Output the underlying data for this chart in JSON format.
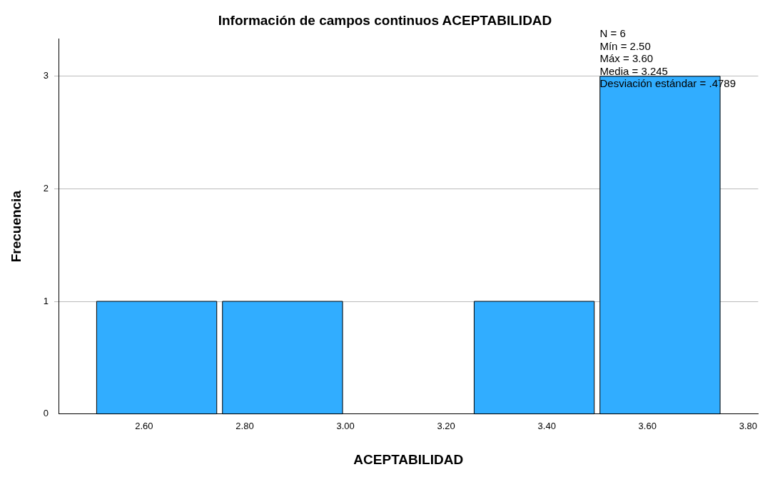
{
  "chart_data": {
    "type": "histogram",
    "title": "Información de campos continuos ACEPTABILIDAD",
    "xlabel": "ACEPTABILIDAD",
    "ylabel": "Frecuencia",
    "bins": [
      2.5,
      2.75,
      3.0,
      3.25,
      3.5,
      3.75
    ],
    "values": [
      1,
      1,
      0,
      1,
      3
    ],
    "color": "#31adff",
    "xlim": [
      2.43,
      3.82
    ],
    "xticks": [
      {
        "value": 2.6,
        "label": "2.60"
      },
      {
        "value": 2.8,
        "label": "2.80"
      },
      {
        "value": 3.0,
        "label": "3.00"
      },
      {
        "value": 3.2,
        "label": "3.20"
      },
      {
        "value": 3.4,
        "label": "3.40"
      },
      {
        "value": 3.6,
        "label": "3.60"
      },
      {
        "value": 3.8,
        "label": "3.80"
      }
    ],
    "ylim": [
      0,
      3.33
    ],
    "yticks": [
      0,
      1,
      2,
      3
    ],
    "grid": "y",
    "annotations": [
      "N = 6",
      "Mín = 2.50",
      "Máx = 3.60",
      "Media = 3.245",
      "Desviación estándar = .4789"
    ]
  }
}
